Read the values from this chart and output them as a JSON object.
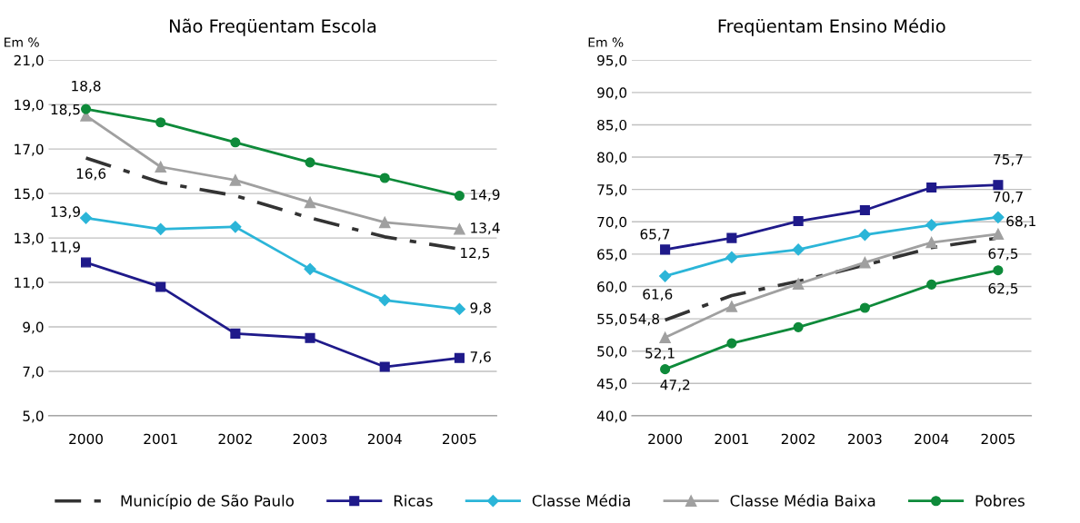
{
  "chart_data": [
    {
      "type": "line",
      "title": "Não Freqüentam Escola",
      "ylabel": "Em %",
      "categories": [
        "2000",
        "2001",
        "2002",
        "2003",
        "2004",
        "2005"
      ],
      "ylim": [
        5,
        21
      ],
      "yticks": [
        {
          "value": 5,
          "label": "5,0"
        },
        {
          "value": 7,
          "label": "7,0"
        },
        {
          "value": 9,
          "label": "9,0"
        },
        {
          "value": 11,
          "label": "11,0"
        },
        {
          "value": 13,
          "label": "13,0"
        },
        {
          "value": 15,
          "label": "15,0"
        },
        {
          "value": 17,
          "label": "17,0"
        },
        {
          "value": 19,
          "label": "19,0"
        },
        {
          "value": 21,
          "label": "21,0"
        }
      ],
      "grid": "y",
      "legend": "bottom",
      "series": [
        {
          "name": "Município de São Paulo",
          "color": "#333333",
          "line_style": "dashdot",
          "marker": "none",
          "values": [
            16.6,
            15.5,
            14.9,
            13.9,
            13.05,
            12.5
          ],
          "value_labels": [
            "16,6",
            null,
            null,
            null,
            null,
            "12,5"
          ]
        },
        {
          "name": "Ricas",
          "color": "#1f1a8a",
          "marker": "square",
          "values": [
            11.9,
            10.8,
            8.7,
            8.5,
            7.2,
            7.6
          ],
          "value_labels": [
            "11,9",
            null,
            null,
            null,
            null,
            "7,6"
          ]
        },
        {
          "name": "Classe Média",
          "color": "#2bb5d8",
          "marker": "diamond",
          "values": [
            13.9,
            13.4,
            13.5,
            11.6,
            10.2,
            9.8
          ],
          "value_labels": [
            "13,9",
            null,
            null,
            null,
            null,
            "9,8"
          ]
        },
        {
          "name": "Classe Média Baixa",
          "color": "#a0a0a0",
          "marker": "triangle",
          "values": [
            18.5,
            16.2,
            15.6,
            14.6,
            13.7,
            13.4
          ],
          "value_labels": [
            "18,5",
            null,
            null,
            null,
            null,
            "13,4"
          ]
        },
        {
          "name": "Pobres",
          "color": "#0e8a3a",
          "marker": "circle",
          "values": [
            18.8,
            18.2,
            17.3,
            16.4,
            15.7,
            14.9
          ],
          "value_labels": [
            "18,8",
            null,
            null,
            null,
            null,
            "14,9"
          ]
        }
      ]
    },
    {
      "type": "line",
      "title": "Freqüentam Ensino Médio",
      "ylabel": "Em %",
      "categories": [
        "2000",
        "2001",
        "2002",
        "2003",
        "2004",
        "2005"
      ],
      "ylim": [
        40,
        95
      ],
      "yticks": [
        {
          "value": 40,
          "label": "40,0"
        },
        {
          "value": 45,
          "label": "45,0"
        },
        {
          "value": 50,
          "label": "50,0"
        },
        {
          "value": 55,
          "label": "55,0"
        },
        {
          "value": 60,
          "label": "60,0"
        },
        {
          "value": 65,
          "label": "65,0"
        },
        {
          "value": 70,
          "label": "70,0"
        },
        {
          "value": 75,
          "label": "75,0"
        },
        {
          "value": 80,
          "label": "80,0"
        },
        {
          "value": 85,
          "label": "85,0"
        },
        {
          "value": 90,
          "label": "90,0"
        },
        {
          "value": 95,
          "label": "95,0"
        }
      ],
      "grid": "y",
      "series": [
        {
          "color": "#333333",
          "line_style": "dashdot",
          "marker": "none",
          "values": [
            54.8,
            58.6,
            60.8,
            63.3,
            66.0,
            67.5
          ],
          "value_labels": [
            "54,8",
            null,
            null,
            null,
            null,
            "67,5"
          ]
        },
        {
          "color": "#1f1a8a",
          "marker": "square",
          "values": [
            65.7,
            67.5,
            70.1,
            71.8,
            75.3,
            75.7
          ],
          "value_labels": [
            "65,7",
            null,
            null,
            null,
            null,
            "75,7"
          ]
        },
        {
          "color": "#2bb5d8",
          "marker": "diamond",
          "values": [
            61.6,
            64.5,
            65.7,
            68.0,
            69.5,
            70.7
          ],
          "value_labels": [
            "61,6",
            null,
            null,
            null,
            null,
            "70,7"
          ]
        },
        {
          "color": "#a0a0a0",
          "marker": "triangle",
          "values": [
            52.1,
            56.9,
            60.4,
            63.7,
            66.8,
            68.1
          ],
          "value_labels": [
            "52,1",
            null,
            null,
            null,
            null,
            "68,1"
          ]
        },
        {
          "color": "#0e8a3a",
          "marker": "circle",
          "values": [
            47.2,
            51.2,
            53.7,
            56.7,
            60.3,
            62.5
          ],
          "value_labels": [
            "47,2",
            null,
            null,
            null,
            null,
            "62,5"
          ]
        }
      ]
    }
  ]
}
